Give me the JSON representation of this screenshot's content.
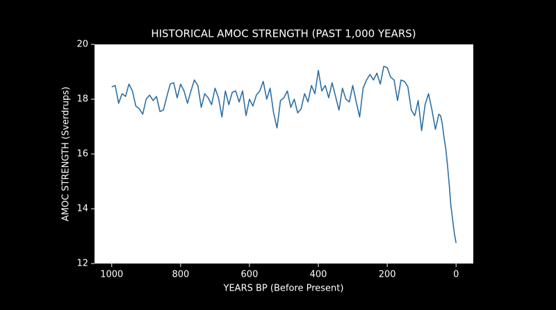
{
  "chart_data": {
    "type": "line",
    "title": "HISTORICAL AMOC STRENGTH (PAST 1,000 YEARS)",
    "x_label": "YEARS BP (Before Present)",
    "y_label": "AMOC STRENGTH (Sverdrups)",
    "xlim": [
      1050,
      -50
    ],
    "ylim": [
      12,
      20
    ],
    "xticks": [
      1000,
      800,
      600,
      400,
      200,
      0
    ],
    "yticks": [
      12,
      14,
      16,
      18,
      20
    ],
    "x": [
      1000,
      990,
      980,
      970,
      960,
      950,
      940,
      930,
      920,
      910,
      900,
      890,
      880,
      870,
      860,
      850,
      840,
      830,
      820,
      810,
      800,
      790,
      780,
      770,
      760,
      750,
      740,
      730,
      720,
      710,
      700,
      690,
      680,
      670,
      660,
      650,
      640,
      630,
      620,
      610,
      600,
      590,
      580,
      570,
      560,
      550,
      540,
      530,
      520,
      510,
      500,
      490,
      480,
      470,
      460,
      450,
      440,
      430,
      420,
      410,
      400,
      390,
      380,
      370,
      360,
      350,
      340,
      330,
      320,
      310,
      300,
      290,
      280,
      270,
      260,
      250,
      240,
      230,
      220,
      210,
      200,
      190,
      180,
      170,
      160,
      150,
      140,
      130,
      120,
      110,
      100,
      90,
      80,
      70,
      60,
      50,
      45,
      40,
      35,
      30,
      25,
      20,
      15,
      10,
      5,
      0
    ],
    "series": [
      {
        "color": "#2c6ea4",
        "values": [
          18.45,
          18.5,
          17.85,
          18.2,
          18.1,
          18.55,
          18.3,
          17.75,
          17.65,
          17.45,
          18.0,
          18.15,
          17.95,
          18.1,
          17.55,
          17.6,
          18.1,
          18.55,
          18.6,
          18.05,
          18.55,
          18.3,
          17.85,
          18.3,
          18.7,
          18.5,
          17.7,
          18.2,
          18.05,
          17.8,
          18.4,
          18.05,
          17.35,
          18.3,
          17.8,
          18.25,
          18.3,
          17.9,
          18.3,
          17.4,
          18.0,
          17.75,
          18.15,
          18.3,
          18.65,
          18.0,
          18.4,
          17.5,
          16.95,
          17.95,
          18.05,
          18.3,
          17.7,
          18.0,
          17.5,
          17.65,
          18.2,
          17.9,
          18.5,
          18.2,
          19.05,
          18.3,
          18.5,
          18.05,
          18.6,
          18.1,
          17.6,
          18.4,
          18.0,
          17.9,
          18.5,
          17.9,
          17.35,
          18.4,
          18.7,
          18.9,
          18.7,
          18.95,
          18.55,
          19.2,
          19.15,
          18.8,
          18.7,
          17.95,
          18.7,
          18.65,
          18.45,
          17.6,
          17.4,
          17.95,
          16.85,
          17.8,
          18.2,
          17.6,
          16.9,
          17.45,
          17.4,
          17.1,
          16.6,
          16.2,
          15.6,
          14.9,
          14.1,
          13.6,
          13.1,
          12.75
        ]
      }
    ]
  }
}
